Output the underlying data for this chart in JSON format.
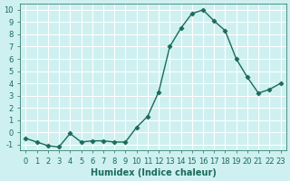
{
  "x": [
    0,
    1,
    2,
    3,
    4,
    5,
    6,
    7,
    8,
    9,
    10,
    11,
    12,
    13,
    14,
    15,
    16,
    17,
    18,
    19,
    20,
    21,
    22,
    23
  ],
  "y": [
    -0.5,
    -0.8,
    -1.1,
    -1.2,
    -0.1,
    -0.8,
    -0.7,
    -0.7,
    -0.8,
    -0.8,
    0.4,
    1.3,
    3.3,
    7.0,
    8.5,
    9.7,
    10.0,
    9.1,
    8.3,
    6.0,
    4.5,
    3.2,
    3.5,
    4.0
  ],
  "line_color": "#1a6b5a",
  "marker": "D",
  "bg_color": "#cef0f0",
  "grid_color": "#ffffff",
  "xlabel": "Humidex (Indice chaleur)",
  "ylim": [
    -1.5,
    10.5
  ],
  "xlim": [
    -0.5,
    23.5
  ],
  "yticks": [
    -1,
    0,
    1,
    2,
    3,
    4,
    5,
    6,
    7,
    8,
    9,
    10
  ],
  "xticks": [
    0,
    1,
    2,
    3,
    4,
    5,
    6,
    7,
    8,
    9,
    10,
    11,
    12,
    13,
    14,
    15,
    16,
    17,
    18,
    19,
    20,
    21,
    22,
    23
  ],
  "tick_color": "#1a6b5a",
  "label_fontsize": 7,
  "tick_fontsize": 6
}
